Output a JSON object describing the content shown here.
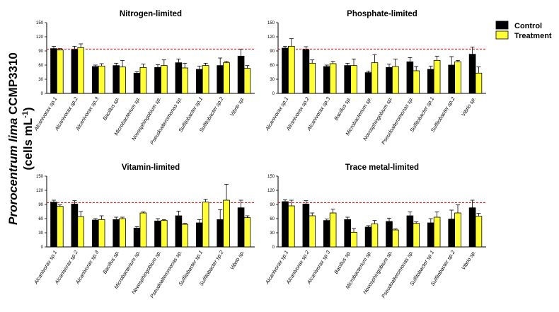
{
  "figure": {
    "ylabel_line1_italic": "Prorocentrum lima",
    "ylabel_line1_rest": " CCMP3310",
    "ylabel_line2_prefix": "(cells mL",
    "ylabel_line2_sup": "-1",
    "ylabel_line2_suffix": ")",
    "legend": [
      {
        "label": "Control",
        "color": "#000000"
      },
      {
        "label": "Treatment",
        "color": "#ffff33"
      }
    ],
    "reference_line_color": "#e00000"
  },
  "chart_data": [
    {
      "type": "bar",
      "title": "Nitrogen-limited",
      "ylim": [
        0,
        150
      ],
      "yticks": [
        "0",
        "30",
        "60",
        "90",
        "120",
        "150"
      ],
      "reference_line": 94,
      "categories": [
        "Alcanivorax sp.1",
        "Alcanivorax sp.2",
        "Alcanivorax sp.3",
        "Bacillus sp.",
        "Microbacterium sp.",
        "Novosphingobium sp.",
        "Pseudoalteromonas sp.",
        "Sulfitobacter sp.1",
        "Sulfitobacter sp.2",
        "Vibrio sp."
      ],
      "series": [
        {
          "name": "Control",
          "values": [
            95,
            93,
            57,
            59,
            43,
            55,
            65,
            51,
            59,
            79
          ],
          "errors": [
            5,
            7,
            3,
            5,
            3,
            6,
            8,
            7,
            16,
            15
          ]
        },
        {
          "name": "Treatment",
          "values": [
            92,
            97,
            58,
            56,
            55,
            59,
            54,
            59,
            65,
            53
          ],
          "errors": [
            3,
            8,
            5,
            14,
            7,
            12,
            10,
            5,
            3,
            6
          ]
        }
      ]
    },
    {
      "type": "bar",
      "title": "Phosphate-limited",
      "ylim": [
        0,
        150
      ],
      "yticks": [
        "0",
        "30",
        "60",
        "90",
        "120",
        "150"
      ],
      "reference_line": 94,
      "categories": [
        "Alcanivorax sp.1",
        "Alcanivorax sp.2",
        "Alcanivorax sp.3",
        "Bacillus sp.",
        "Microbacterium sp.",
        "Novosphingobium sp.",
        "Pseudoalteromonas sp.",
        "Sulfitobacter sp.1",
        "Sulfitobacter sp.2",
        "Vibrio sp."
      ],
      "series": [
        {
          "name": "Control",
          "values": [
            96,
            93,
            57,
            59,
            44,
            55,
            67,
            51,
            60,
            83
          ],
          "errors": [
            4,
            6,
            3,
            5,
            3,
            7,
            9,
            7,
            18,
            15
          ]
        },
        {
          "name": "Treatment",
          "values": [
            100,
            64,
            63,
            59,
            65,
            57,
            48,
            70,
            67,
            43
          ],
          "errors": [
            16,
            7,
            5,
            14,
            17,
            16,
            9,
            9,
            3,
            13
          ]
        }
      ]
    },
    {
      "type": "bar",
      "title": "Vitamin-limited",
      "ylim": [
        0,
        150
      ],
      "yticks": [
        "0",
        "30",
        "60",
        "90",
        "120",
        "150"
      ],
      "reference_line": 94,
      "categories": [
        "Alcanivorax sp.1",
        "Alcanivorax sp.2",
        "Alcanivorax sp.3",
        "Bacillus sp.",
        "Microbacterium sp.",
        "Novosphingobium sp.",
        "Pseudoalteromonas sp.",
        "Sulfitobacter sp.1",
        "Sulfitobacter sp.2",
        "Vibrio sp."
      ],
      "series": [
        {
          "name": "Control",
          "values": [
            95,
            91,
            57,
            58,
            40,
            55,
            66,
            51,
            58,
            83
          ],
          "errors": [
            4,
            7,
            3,
            5,
            3,
            5,
            10,
            7,
            21,
            16
          ]
        },
        {
          "name": "Treatment",
          "values": [
            86,
            64,
            58,
            60,
            72,
            56,
            48,
            95,
            99,
            62
          ],
          "errors": [
            3,
            11,
            8,
            3,
            2,
            2,
            2,
            6,
            34,
            4
          ]
        }
      ]
    },
    {
      "type": "bar",
      "title": "Trace metal-limited",
      "ylim": [
        0,
        150
      ],
      "yticks": [
        "0",
        "30",
        "60",
        "90",
        "120",
        "150"
      ],
      "reference_line": 94,
      "categories": [
        "Alcanivorax sp.1",
        "Alcanivorax sp.2",
        "Alcanivorax sp.3",
        "Bacillus sp.",
        "Microbacterium sp.",
        "Novosphingobium sp.",
        "Pseudoalteromonas sp.",
        "Sulfitobacter sp.1",
        "Sulfitobacter sp.2",
        "Vibrio sp."
      ],
      "series": [
        {
          "name": "Control",
          "values": [
            96,
            91,
            56,
            58,
            42,
            54,
            66,
            51,
            59,
            83
          ],
          "errors": [
            4,
            7,
            3,
            5,
            3,
            7,
            8,
            9,
            19,
            16
          ]
        },
        {
          "name": "Treatment",
          "values": [
            87,
            66,
            72,
            31,
            49,
            36,
            50,
            63,
            72,
            65
          ],
          "errors": [
            12,
            6,
            8,
            8,
            7,
            2,
            3,
            11,
            17,
            6
          ]
        }
      ]
    }
  ]
}
